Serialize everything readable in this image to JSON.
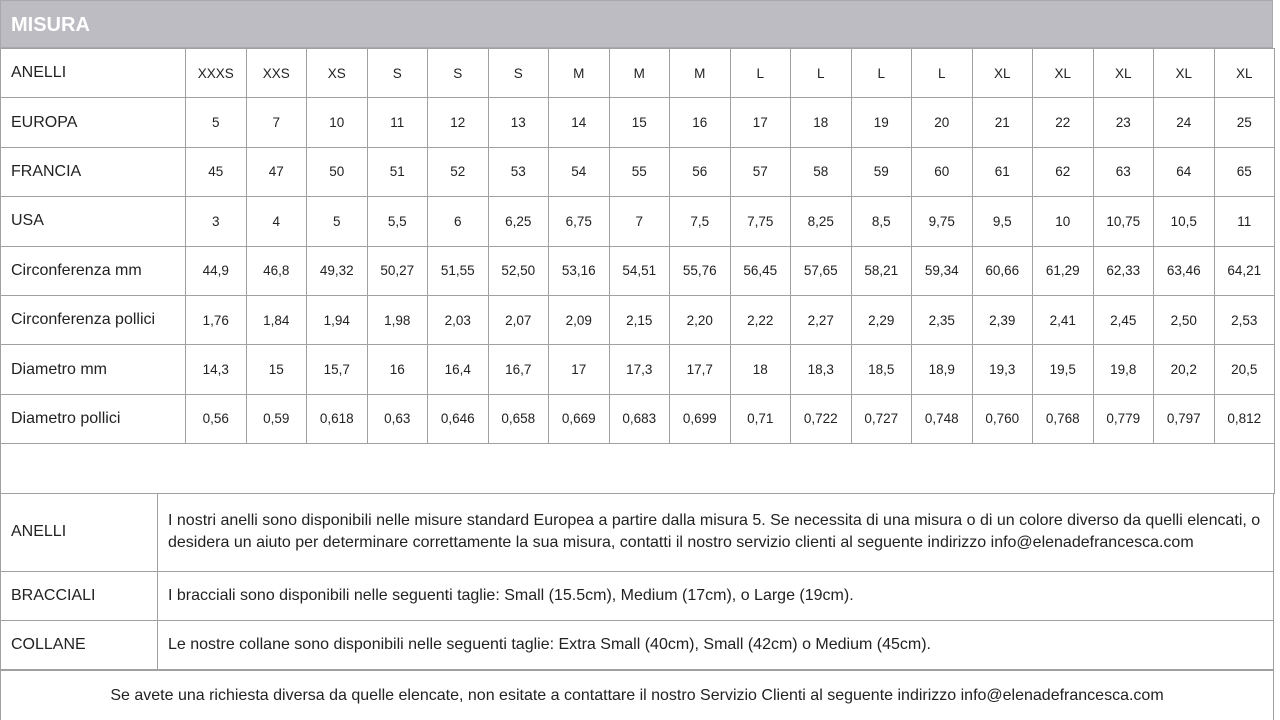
{
  "header": {
    "title": "MISURA"
  },
  "size_table": {
    "rows": [
      {
        "label": "ANELLI",
        "cells": [
          "XXXS",
          "XXS",
          "XS",
          "S",
          "S",
          "S",
          "M",
          "M",
          "M",
          "L",
          "L",
          "L",
          "L",
          "XL",
          "XL",
          "XL",
          "XL",
          "XL"
        ]
      },
      {
        "label": "EUROPA",
        "cells": [
          "5",
          "7",
          "10",
          "11",
          "12",
          "13",
          "14",
          "15",
          "16",
          "17",
          "18",
          "19",
          "20",
          "21",
          "22",
          "23",
          "24",
          "25"
        ]
      },
      {
        "label": "FRANCIA",
        "cells": [
          "45",
          "47",
          "50",
          "51",
          "52",
          "53",
          "54",
          "55",
          "56",
          "57",
          "58",
          "59",
          "60",
          "61",
          "62",
          "63",
          "64",
          "65"
        ]
      },
      {
        "label": "USA",
        "cells": [
          "3",
          "4",
          "5",
          "5,5",
          "6",
          "6,25",
          "6,75",
          "7",
          "7,5",
          "7,75",
          "8,25",
          "8,5",
          "9,75",
          "9,5",
          "10",
          "10,75",
          "10,5",
          "11"
        ]
      },
      {
        "label": "Circonferenza mm",
        "cells": [
          "44,9",
          "46,8",
          "49,32",
          "50,27",
          "51,55",
          "52,50",
          "53,16",
          "54,51",
          "55,76",
          "56,45",
          "57,65",
          "58,21",
          "59,34",
          "60,66",
          "61,29",
          "62,33",
          "63,46",
          "64,21"
        ]
      },
      {
        "label": "Circonferenza pollici",
        "cells": [
          "1,76",
          "1,84",
          "1,94",
          "1,98",
          "2,03",
          "2,07",
          "2,09",
          "2,15",
          "2,20",
          "2,22",
          "2,27",
          "2,29",
          "2,35",
          "2,39",
          "2,41",
          "2,45",
          "2,50",
          "2,53"
        ]
      },
      {
        "label": "Diametro mm",
        "cells": [
          "14,3",
          "15",
          "15,7",
          "16",
          "16,4",
          "16,7",
          "17",
          "17,3",
          "17,7",
          "18",
          "18,3",
          "18,5",
          "18,9",
          "19,3",
          "19,5",
          "19,8",
          "20,2",
          "20,5"
        ]
      },
      {
        "label": "Diametro pollici",
        "cells": [
          "0,56",
          "0,59",
          "0,618",
          "0,63",
          "0,646",
          "0,658",
          "0,669",
          "0,683",
          "0,699",
          "0,71",
          "0,722",
          "0,727",
          "0,748",
          "0,760",
          "0,768",
          "0,779",
          "0,797",
          "0,812"
        ]
      }
    ]
  },
  "notes": {
    "rows": [
      {
        "label": "ANELLI",
        "text": "I nostri anelli sono disponibili nelle misure standard Europea a partire dalla misura 5. Se necessita di una misura o di un colore diverso da quelli elencati, o desidera un aiuto per determinare correttamente la sua misura, contatti il nostro servizio clienti al seguente indirizzo info@elenadefrancesca.com"
      },
      {
        "label": "BRACCIALI",
        "text": "I bracciali sono disponibili nelle seguenti taglie: Small (15.5cm), Medium (17cm), o Large (19cm)."
      },
      {
        "label": "COLLANE",
        "text": "Le nostre collane sono disponibili nelle seguenti taglie: Extra Small (40cm), Small (42cm) o Medium (45cm)."
      }
    ]
  },
  "footer": {
    "text": "Se avete una richiesta diversa da quelle elencate, non esitate a contattare il nostro Servizio Clienti al seguente indirizzo info@elenadefrancesca.com"
  }
}
